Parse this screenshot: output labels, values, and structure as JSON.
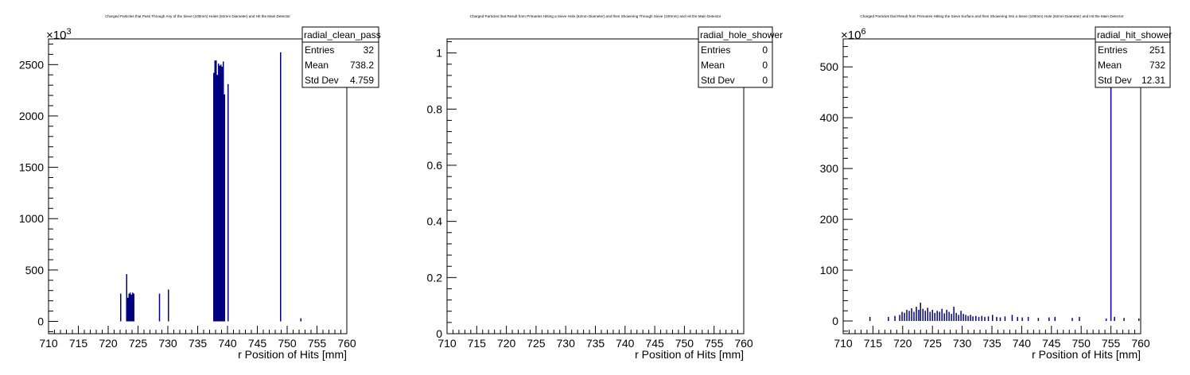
{
  "chart_data": [
    {
      "type": "bar",
      "title": "Charged Particles that Pass Through Any of the Sieve (100mm) Holes (62mm Diameter) and Hit the Main Detector",
      "xlabel": "r Position of Hits [mm]",
      "ylabel": "",
      "exponent_base": "×10",
      "exponent_power": "3",
      "xlim": [
        710,
        760
      ],
      "ylim": [
        -120,
        2750
      ],
      "xticks": [
        "710",
        "715",
        "720",
        "725",
        "730",
        "735",
        "740",
        "745",
        "750",
        "755",
        "760"
      ],
      "yticks": [
        "0",
        "500",
        "1000",
        "1500",
        "2000",
        "2500"
      ],
      "stats": {
        "name": "radial_clean_pass",
        "rows": [
          {
            "label": "Entries",
            "value": "32"
          },
          {
            "label": "Mean",
            "value": "738.2"
          },
          {
            "label": "Std Dev",
            "value": "4.759"
          }
        ]
      },
      "bin_width": 0.2,
      "x": [
        722.1,
        723.1,
        723.3,
        723.5,
        723.7,
        723.9,
        724.1,
        724.3,
        728.6,
        730.1,
        737.7,
        737.9,
        738.1,
        738.3,
        738.5,
        738.7,
        738.9,
        739.1,
        739.3,
        739.5,
        740.1,
        748.9,
        752.3
      ],
      "values": [
        270,
        460,
        230,
        270,
        280,
        260,
        280,
        270,
        270,
        310,
        2420,
        2540,
        2540,
        2400,
        2510,
        2490,
        2500,
        2480,
        2530,
        2210,
        2310,
        2620,
        30
      ]
    },
    {
      "type": "bar",
      "title": "Charged Particles that Result from Primaries Hitting a Sieve Hole (62mm Diameter) and then Showering Through Sieve (100mm) and Hit the Main Detector",
      "xlabel": "r Position of Hits [mm]",
      "ylabel": "",
      "xlim": [
        710,
        760
      ],
      "ylim": [
        0,
        1.05
      ],
      "xticks": [
        "710",
        "715",
        "720",
        "725",
        "730",
        "735",
        "740",
        "745",
        "750",
        "755",
        "760"
      ],
      "yticks": [
        "0",
        "0.2",
        "0.4",
        "0.6",
        "0.8",
        "1"
      ],
      "stats": {
        "name": "radial_hole_shower",
        "rows": [
          {
            "label": "Entries",
            "value": "0"
          },
          {
            "label": "Mean",
            "value": "0"
          },
          {
            "label": "Std Dev",
            "value": "0"
          }
        ]
      },
      "bin_width": 0.2,
      "x": [],
      "values": []
    },
    {
      "type": "bar",
      "title": "Charged Particles that Result from Primaries Hitting the Sieve Surface and then Showering Into a Sieve (100mm) Hole (62mm Diameter) and Hit the Main Detector",
      "xlabel": "r Position of Hits [mm]",
      "ylabel": "",
      "exponent_base": "×10",
      "exponent_power": "6",
      "xlim": [
        710,
        760
      ],
      "ylim": [
        -25,
        555
      ],
      "xticks": [
        "710",
        "715",
        "720",
        "725",
        "730",
        "735",
        "740",
        "745",
        "750",
        "755",
        "760"
      ],
      "yticks": [
        "0",
        "100",
        "200",
        "300",
        "400",
        "500"
      ],
      "stats": {
        "name": "radial_hit_shower",
        "rows": [
          {
            "label": "Entries",
            "value": "251"
          },
          {
            "label": "Mean",
            "value": "732"
          },
          {
            "label": "Std Dev",
            "value": "12.31"
          }
        ]
      },
      "bin_width": 0.2,
      "x": [
        714.5,
        717.6,
        718.7,
        719.5,
        719.9,
        720.3,
        720.7,
        721.1,
        721.5,
        721.9,
        722.3,
        722.7,
        723.0,
        723.4,
        723.8,
        724.2,
        724.6,
        725.0,
        725.4,
        725.8,
        726.2,
        726.6,
        727.0,
        727.4,
        727.8,
        728.2,
        728.6,
        729.0,
        729.4,
        729.8,
        730.2,
        730.6,
        731.0,
        731.4,
        731.8,
        732.3,
        732.8,
        733.3,
        733.8,
        734.4,
        735.1,
        735.8,
        736.4,
        737.2,
        738.4,
        739.3,
        740.1,
        741.1,
        742.8,
        744.6,
        745.6,
        748.5,
        749.7,
        754.2,
        755.0,
        755.6,
        757.2,
        759.7
      ],
      "values": [
        8,
        8,
        10,
        12,
        18,
        16,
        22,
        20,
        25,
        18,
        28,
        22,
        36,
        24,
        20,
        26,
        18,
        22,
        16,
        20,
        18,
        24,
        15,
        22,
        18,
        14,
        28,
        16,
        12,
        20,
        14,
        12,
        10,
        12,
        9,
        10,
        8,
        10,
        8,
        9,
        12,
        8,
        7,
        9,
        12,
        8,
        7,
        8,
        6,
        7,
        8,
        6,
        8,
        5,
        555,
        8,
        6,
        5
      ]
    }
  ]
}
